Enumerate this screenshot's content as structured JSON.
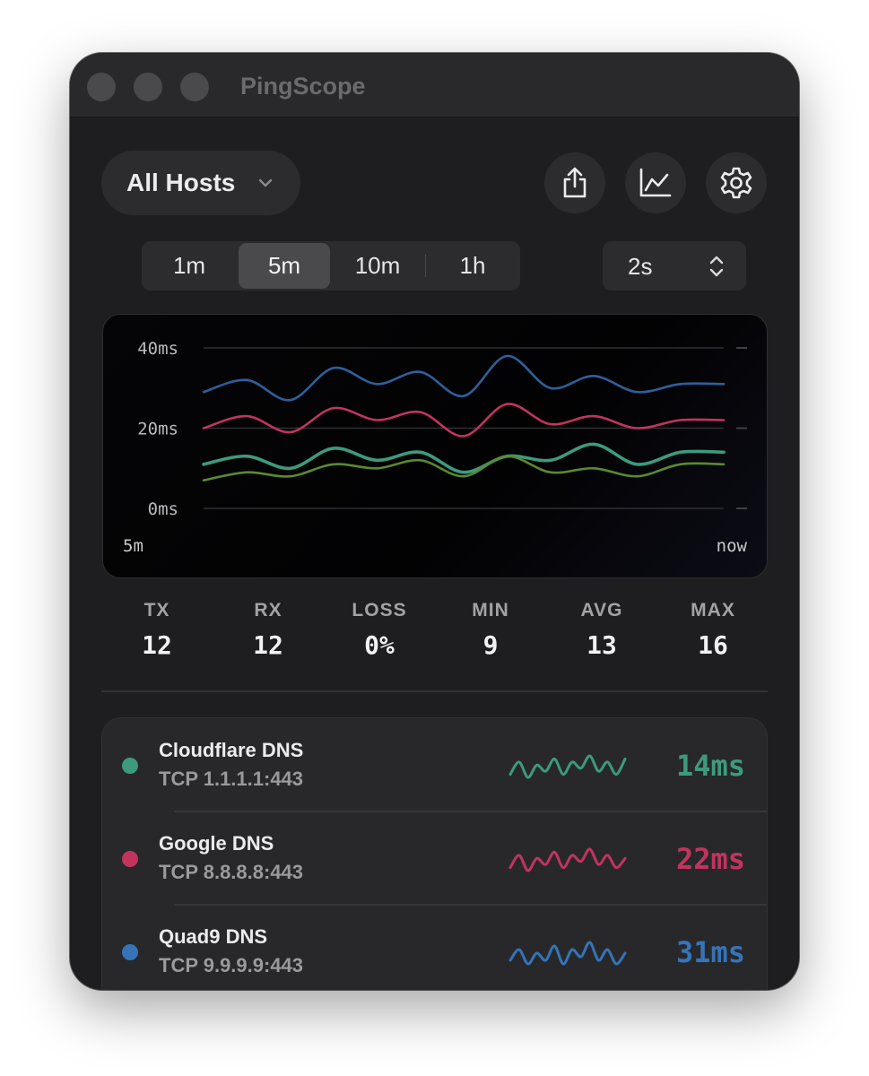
{
  "window": {
    "title": "PingScope"
  },
  "toolbar": {
    "host_filter": "All Hosts",
    "icons": [
      "share-icon",
      "chart-icon",
      "gear-icon"
    ]
  },
  "time_range": {
    "options": [
      "1m",
      "5m",
      "10m",
      "1h"
    ],
    "selected": "5m"
  },
  "interval": {
    "value": "2s"
  },
  "chart_data": {
    "type": "line",
    "y_ticks": [
      "40ms",
      "20ms",
      "0ms"
    ],
    "x_start_label": "5m",
    "x_end_label": "now",
    "ylim": [
      0,
      40
    ],
    "grid": true,
    "x": [
      0,
      1,
      2,
      3,
      4,
      5,
      6,
      7,
      8,
      9,
      10,
      11,
      12
    ],
    "series": [
      {
        "color": "#2f5f9c",
        "values": [
          29,
          32,
          27,
          35,
          31,
          34,
          28,
          38,
          30,
          33,
          29,
          31,
          31
        ]
      },
      {
        "color": "#c2345f",
        "values": [
          20,
          23,
          19,
          25,
          22,
          24,
          18,
          26,
          21,
          23,
          20,
          22,
          22
        ]
      },
      {
        "color": "#3d9a7d",
        "values": [
          11,
          13,
          10,
          15,
          12,
          14,
          9,
          13,
          12,
          16,
          11,
          14,
          14
        ]
      },
      {
        "color": "#5b8a2e",
        "values": [
          7,
          9,
          8,
          11,
          10,
          12,
          8,
          13,
          9,
          10,
          8,
          11,
          11
        ]
      }
    ]
  },
  "stats": [
    {
      "label": "TX",
      "value": "12"
    },
    {
      "label": "RX",
      "value": "12"
    },
    {
      "label": "LOSS",
      "value": "0%"
    },
    {
      "label": "MIN",
      "value": "9"
    },
    {
      "label": "AVG",
      "value": "13"
    },
    {
      "label": "MAX",
      "value": "16"
    }
  ],
  "hosts": [
    {
      "name": "Cloudflare DNS",
      "address": "TCP 1.1.1.1:443",
      "latency": "14ms",
      "color": "#3d9a7d",
      "sparkline": [
        10,
        14,
        9,
        13,
        11,
        15,
        10,
        14,
        12,
        16,
        11,
        14,
        10,
        15
      ]
    },
    {
      "name": "Google DNS",
      "address": "TCP 8.8.8.8:443",
      "latency": "22ms",
      "color": "#c2345f",
      "sparkline": [
        20,
        24,
        19,
        23,
        21,
        25,
        20,
        24,
        22,
        26,
        21,
        24,
        20,
        23
      ]
    },
    {
      "name": "Quad9 DNS",
      "address": "TCP 9.9.9.9:443",
      "latency": "31ms",
      "color": "#3574b8",
      "sparkline": [
        30,
        33,
        29,
        32,
        30,
        34,
        29,
        33,
        31,
        35,
        30,
        33,
        29,
        32
      ]
    }
  ]
}
